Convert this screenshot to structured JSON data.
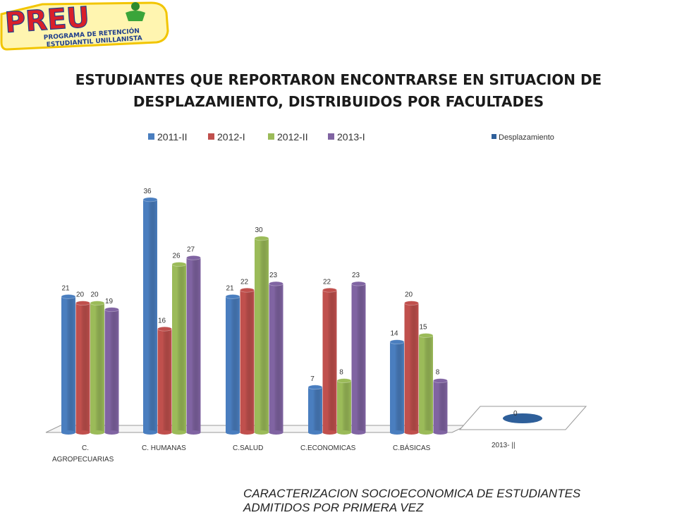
{
  "logo": {
    "brand": "PREU",
    "tagline_1": "PROGRAMA DE RETENCIÓN",
    "tagline_2": "ESTUDIANTIL UNILLANISTA"
  },
  "title_line1": "ESTUDIANTES QUE REPORTARON  ENCONTRARSE EN SITUACION DE",
  "title_line2": "DESPLAZAMIENTO, DISTRIBUIDOS POR FACULTADES",
  "footer_line1": "CARACTERIZACION SOCIOECONOMICA DE ESTUDIANTES",
  "footer_line2": "ADMITIDOS POR PRIMERA VEZ",
  "colors": {
    "blue": "#4a7ebf",
    "red": "#c0504d",
    "green": "#9bbb59",
    "purple": "#8064a2",
    "pie": "#2e5f9a"
  },
  "chart_data": [
    {
      "type": "bar",
      "categories": [
        "C.\nAGROPECUARIAS",
        "C. HUMANAS",
        "C.SALUD",
        "C.ECONOMICAS",
        "C.BÁSICAS"
      ],
      "series": [
        {
          "name": "2011-II",
          "values": [
            21,
            36,
            21,
            7,
            14
          ]
        },
        {
          "name": "2012-I",
          "values": [
            20,
            16,
            22,
            22,
            20
          ]
        },
        {
          "name": "2012-II",
          "values": [
            20,
            26,
            30,
            8,
            15
          ]
        },
        {
          "name": "2013-I",
          "values": [
            19,
            27,
            23,
            23,
            8
          ]
        }
      ],
      "ylim": [
        0,
        38
      ],
      "legend": "top",
      "grid": false
    },
    {
      "type": "pie",
      "categories": [
        "2013- ||"
      ],
      "series": [
        {
          "name": "Desplazamiento",
          "values": [
            0
          ]
        }
      ],
      "legend": "top"
    }
  ]
}
